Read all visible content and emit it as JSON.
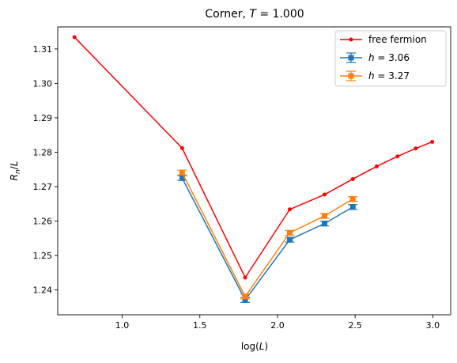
{
  "chart_data": {
    "type": "line",
    "title_prefix": "Corner, ",
    "title_math": "T",
    "title_suffix": " = 1.000",
    "xlabel_prefix": "log(",
    "xlabel_math": "L",
    "xlabel_suffix": ")",
    "ylabel_math_a": "R",
    "ylabel_sub": "n",
    "ylabel_mid": "/",
    "ylabel_math_b": "L",
    "xlim": [
      0.585,
      3.115
    ],
    "ylim": [
      1.2328,
      1.3164
    ],
    "xticks": [
      {
        "value": 1.0,
        "label": "1.0"
      },
      {
        "value": 1.5,
        "label": "1.5"
      },
      {
        "value": 2.0,
        "label": "2.0"
      },
      {
        "value": 2.5,
        "label": "2.5"
      },
      {
        "value": 3.0,
        "label": "3.0"
      }
    ],
    "yticks": [
      {
        "value": 1.24,
        "label": "1.24"
      },
      {
        "value": 1.25,
        "label": "1.25"
      },
      {
        "value": 1.26,
        "label": "1.26"
      },
      {
        "value": 1.27,
        "label": "1.27"
      },
      {
        "value": 1.28,
        "label": "1.28"
      },
      {
        "value": 1.29,
        "label": "1.29"
      },
      {
        "value": 1.3,
        "label": "1.30"
      },
      {
        "value": 1.31,
        "label": "1.31"
      }
    ],
    "legend_position": "top-right",
    "series": [
      {
        "name": "free fermion",
        "legend_text": "free fermion",
        "color": "#ff0000",
        "marker": "dot",
        "x": [
          0.693,
          1.386,
          1.792,
          2.079,
          2.303,
          2.485,
          2.639,
          2.773,
          2.89,
          2.996
        ],
        "y": [
          1.3134,
          1.2812,
          1.2436,
          1.2634,
          1.2677,
          1.2722,
          1.2759,
          1.2788,
          1.2811,
          1.283
        ]
      },
      {
        "name": "h = 3.06",
        "legend_math": "h",
        "legend_suffix": " = 3.06",
        "color": "#1f77b4",
        "marker": "square",
        "x": [
          1.386,
          1.792,
          2.079,
          2.303,
          2.485
        ],
        "y": [
          1.2725,
          1.2371,
          1.2546,
          1.2593,
          1.2641
        ],
        "err": [
          0.0007,
          0.0007,
          0.0007,
          0.0007,
          0.0007
        ]
      },
      {
        "name": "h = 3.27",
        "legend_math": "h",
        "legend_suffix": " = 3.27",
        "color": "#ff7f0e",
        "marker": "square",
        "x": [
          1.386,
          1.792,
          2.079,
          2.303,
          2.485
        ],
        "y": [
          1.2741,
          1.2381,
          1.2566,
          1.2615,
          1.2664
        ],
        "err": [
          0.0007,
          0.0007,
          0.0007,
          0.0007,
          0.0007
        ]
      }
    ]
  }
}
